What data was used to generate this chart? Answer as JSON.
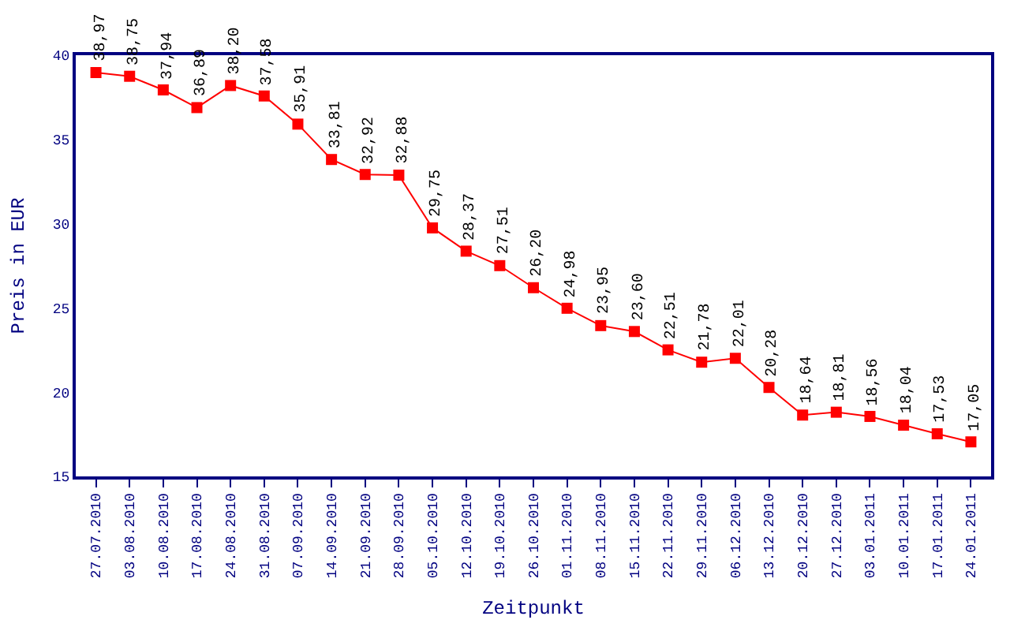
{
  "chart_data": {
    "type": "line",
    "xlabel": "Zeitpunkt",
    "ylabel": "Preis in EUR",
    "categories": [
      "27.07.2010",
      "03.08.2010",
      "10.08.2010",
      "17.08.2010",
      "24.08.2010",
      "31.08.2010",
      "07.09.2010",
      "14.09.2010",
      "21.09.2010",
      "28.09.2010",
      "05.10.2010",
      "12.10.2010",
      "19.10.2010",
      "26.10.2010",
      "01.11.2010",
      "08.11.2010",
      "15.11.2010",
      "22.11.2010",
      "29.11.2010",
      "06.12.2010",
      "13.12.2010",
      "20.12.2010",
      "27.12.2010",
      "03.01.2011",
      "10.01.2011",
      "17.01.2011",
      "24.01.2011"
    ],
    "series": [
      {
        "color": "#ff0000",
        "values": [
          38.97,
          38.75,
          37.94,
          36.89,
          38.2,
          37.58,
          35.91,
          33.81,
          32.92,
          32.88,
          29.75,
          28.37,
          27.51,
          26.2,
          24.98,
          23.95,
          23.6,
          22.51,
          21.78,
          22.01,
          20.28,
          18.64,
          18.81,
          18.56,
          18.04,
          17.53,
          17.05
        ],
        "value_labels": [
          "38,97",
          "38,75",
          "37,94",
          "36,89",
          "38,20",
          "37,58",
          "35,91",
          "33,81",
          "32,92",
          "32,88",
          "29,75",
          "28,37",
          "27,51",
          "26,20",
          "24,98",
          "23,95",
          "23,60",
          "22,51",
          "21,78",
          "22,01",
          "20,28",
          "18,64",
          "18,81",
          "18,56",
          "18,04",
          "17,53",
          "17,05"
        ]
      }
    ],
    "ylim": [
      15,
      40
    ],
    "yticks": [
      15,
      20,
      25,
      30,
      35,
      40
    ],
    "legend": false,
    "marker": "square",
    "line_style": "solid"
  }
}
